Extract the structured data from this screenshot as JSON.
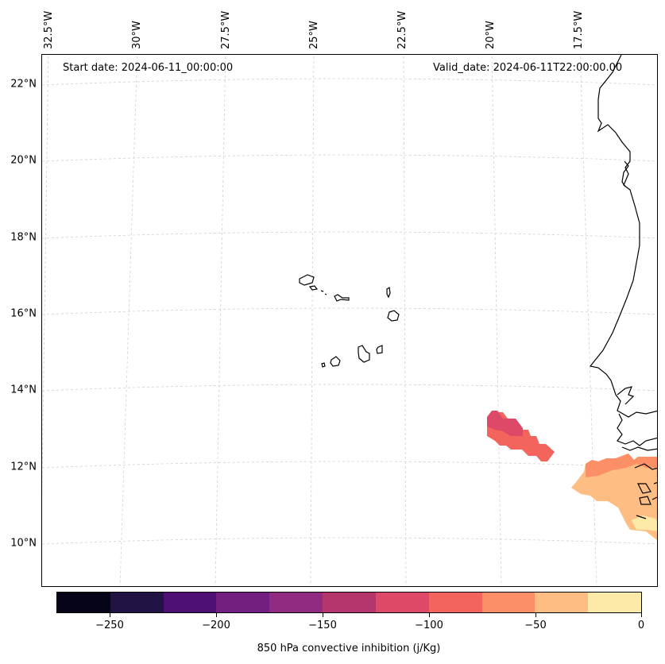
{
  "map": {
    "start_date_label": "Start date: 2024-06-11_00:00:00",
    "valid_date_label": "Valid_date: 2024-06-11T22:00:00.00",
    "variable": "850 hPa convective inhibition (j/Kg)",
    "latitude_labels": [
      "22°N",
      "20°N",
      "18°N",
      "16°N",
      "14°N",
      "12°N",
      "10°N"
    ],
    "longitude_labels": [
      "32.5°W",
      "30°W",
      "27.5°W",
      "25°W",
      "22.5°W",
      "20°W",
      "17.5°W"
    ],
    "colors": {
      "coastline": "#000000",
      "gridline": "#d0d0d0"
    }
  },
  "colorbar": {
    "label": "850 hPa convective inhibition (j/Kg)",
    "tick_labels": [
      "−250",
      "−200",
      "−150",
      "−100",
      "−50",
      "0"
    ],
    "range": [
      -275,
      0
    ],
    "levels": [
      -275,
      -250,
      -225,
      -200,
      -175,
      -150,
      -125,
      -100,
      -75,
      -50,
      -25,
      0
    ],
    "colors": [
      "#050418",
      "#211445",
      "#4f1076",
      "#731f81",
      "#912b81",
      "#b4366c",
      "#dd4a69",
      "#f3655c",
      "#fc8f65",
      "#fdbd83",
      "#fde9a8"
    ]
  },
  "features": {
    "islands": "Cape Verde Islands",
    "coast": "West African coast"
  }
}
